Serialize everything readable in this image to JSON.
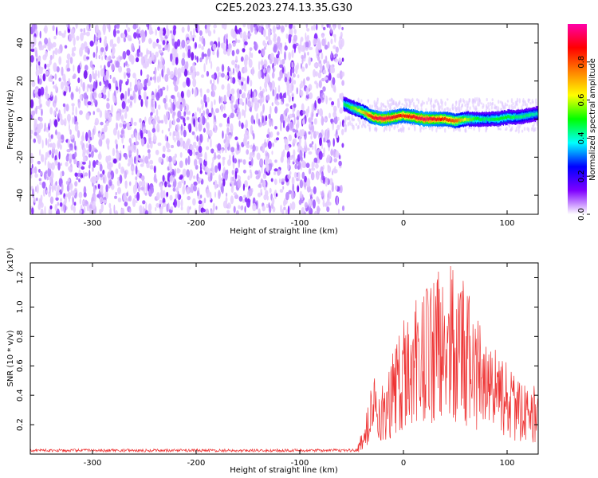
{
  "title": "C2E5.2023.274.13.35.G30",
  "chart_data": [
    {
      "type": "heatmap",
      "xlabel": "Height of straight line (km)",
      "ylabel": "Frequency (Hz)",
      "xlim": [
        -360,
        130
      ],
      "ylim": [
        -50,
        50
      ],
      "x_ticks": [
        -300,
        -200,
        -100,
        0,
        100
      ],
      "x_tick_labels": [
        "-300",
        "-200",
        "-100",
        "0",
        "100"
      ],
      "y_ticks": [
        -40,
        -20,
        0,
        20,
        40
      ],
      "y_tick_labels": [
        "-40",
        "-20",
        "0",
        "20",
        "40"
      ],
      "noise_region": {
        "x_start": -360,
        "x_end": -58,
        "freq_range": [
          -50,
          50
        ]
      },
      "signal_trace": {
        "x": [
          -58,
          -50,
          -40,
          -30,
          -20,
          -10,
          0,
          10,
          20,
          30,
          40,
          50,
          60,
          70,
          80,
          90,
          100,
          110,
          120,
          130
        ],
        "freq": [
          8,
          6,
          4,
          1,
          0,
          1,
          2,
          1,
          0,
          0,
          0,
          -1,
          0,
          0,
          0,
          0,
          1,
          1,
          2,
          3
        ],
        "amplitude": [
          0.45,
          0.55,
          0.65,
          0.9,
          0.95,
          0.9,
          0.85,
          0.9,
          0.95,
          0.9,
          0.85,
          0.8,
          0.6,
          0.5,
          0.45,
          0.5,
          0.5,
          0.45,
          0.45,
          0.4
        ]
      },
      "colorbar": {
        "label": "Normalized spectral amplitude",
        "range": [
          0,
          1
        ],
        "ticks": [
          0.0,
          0.2,
          0.4,
          0.6,
          0.8
        ],
        "tick_labels": [
          "0.0",
          "0.2",
          "0.4",
          "0.6",
          "0.8"
        ],
        "colors": [
          "#ffffff",
          "#7f00ff",
          "#0000ff",
          "#00ffff",
          "#00ff00",
          "#ffff00",
          "#ff8000",
          "#ff0000",
          "#ff00aa"
        ]
      }
    },
    {
      "type": "line",
      "xlabel": "Height of straight line (km)",
      "ylabel": "SNR (10 * v/v)",
      "scale_label": "(x10⁴)",
      "xlim": [
        -360,
        130
      ],
      "ylim": [
        0,
        1.3
      ],
      "x_ticks": [
        -300,
        -200,
        -100,
        0,
        100
      ],
      "x_tick_labels": [
        "-300",
        "-200",
        "-100",
        "0",
        "100"
      ],
      "y_ticks": [
        0.2,
        0.4,
        0.6,
        0.8,
        1.0,
        1.2
      ],
      "y_tick_labels": [
        "0.2",
        "0.4",
        "0.6",
        "0.8",
        "1.0",
        "1.2"
      ],
      "line_color": "#ee3333",
      "series": [
        {
          "x": [
            -360,
            -300,
            -250,
            -200,
            -150,
            -100,
            -60,
            -45,
            -40,
            -35,
            -30,
            -25,
            -20,
            -15,
            -10,
            -5,
            0,
            5,
            10,
            15,
            20,
            25,
            30,
            35,
            40,
            45,
            50,
            55,
            60,
            65,
            70,
            75,
            80,
            85,
            90,
            95,
            100,
            105,
            110,
            115,
            120,
            125,
            130
          ],
          "y": [
            0.02,
            0.02,
            0.02,
            0.02,
            0.02,
            0.02,
            0.02,
            0.03,
            0.1,
            0.2,
            0.35,
            0.35,
            0.3,
            0.35,
            0.45,
            0.55,
            0.62,
            0.66,
            0.72,
            0.75,
            0.78,
            0.8,
            0.82,
            0.82,
            0.83,
            0.84,
            0.8,
            0.78,
            0.75,
            0.7,
            0.62,
            0.58,
            0.52,
            0.48,
            0.45,
            0.42,
            0.4,
            0.38,
            0.35,
            0.33,
            0.32,
            0.3,
            0.3
          ]
        }
      ]
    }
  ]
}
